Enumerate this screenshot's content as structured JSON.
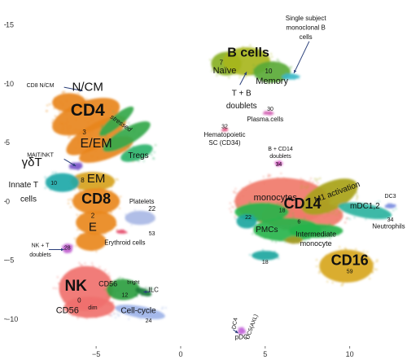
{
  "chart_data": {
    "type": "scatter",
    "title": "",
    "xlabel": "",
    "ylabel": "",
    "xlim": [
      -10.3,
      13
    ],
    "ylim": [
      -12.3,
      16.7
    ],
    "x_ticks": [
      -5,
      0,
      5,
      10
    ],
    "y_ticks": [
      -10,
      -5,
      0,
      5,
      10,
      15
    ],
    "grid": false,
    "legend": "none",
    "clusters": [
      {
        "id": "cd4",
        "color": "#E8861E",
        "ellipses": [
          [
            -5.6,
            7.2,
            2.1,
            1.3,
            -20
          ],
          [
            -5.0,
            5.6,
            2.0,
            1.0,
            -30
          ],
          [
            -4.4,
            4.4,
            1.7,
            0.8,
            -20
          ],
          [
            -6.6,
            8.4,
            1.0,
            0.8,
            0
          ]
        ]
      },
      {
        "id": "cd4-green",
        "color": "#34A84A",
        "ellipses": [
          [
            -3.8,
            6.8,
            1.3,
            0.5,
            -40
          ],
          [
            -3.2,
            5.5,
            1.6,
            0.7,
            -30
          ]
        ]
      },
      {
        "id": "tregs",
        "color": "#2DB36B",
        "ellipses": [
          [
            -2.6,
            4.1,
            1.0,
            0.6,
            -20
          ]
        ]
      },
      {
        "id": "em",
        "color": "#D6A21C",
        "ellipses": [
          [
            -5.2,
            1.7,
            1.3,
            0.8,
            0
          ]
        ]
      },
      {
        "id": "cd8",
        "color": "#E9881E",
        "ellipses": [
          [
            -5.0,
            0.0,
            1.4,
            1.1,
            0
          ],
          [
            -5.0,
            -1.8,
            1.2,
            1.0,
            0
          ],
          [
            -5.3,
            -3.4,
            0.9,
            0.8,
            0
          ]
        ]
      },
      {
        "id": "gdt",
        "color": "#1FA8A8",
        "ellipses": [
          [
            -7.0,
            1.6,
            1.0,
            0.8,
            0
          ]
        ]
      },
      {
        "id": "mait",
        "color": "#7A55C9",
        "ellipses": [
          [
            -6.2,
            3.0,
            0.4,
            0.3,
            0
          ]
        ]
      },
      {
        "id": "nk",
        "color": "#F0716E",
        "ellipses": [
          [
            -5.6,
            -7.4,
            1.6,
            1.9,
            0
          ],
          [
            -5.4,
            -9.0,
            1.5,
            0.9,
            0
          ]
        ]
      },
      {
        "id": "cd56bright",
        "color": "#2A9E3F",
        "ellipses": [
          [
            -3.4,
            -7.5,
            1.0,
            0.9,
            0
          ]
        ]
      },
      {
        "id": "ilc",
        "color": "#1A7A3A",
        "ellipses": [
          [
            -2.2,
            -7.7,
            0.5,
            0.3,
            20
          ]
        ]
      },
      {
        "id": "cellcycle",
        "color": "#9DB3E8",
        "ellipses": [
          [
            -2.4,
            -9.4,
            1.5,
            0.5,
            10
          ]
        ]
      },
      {
        "id": "nkt",
        "color": "#C060D0",
        "ellipses": [
          [
            -6.7,
            -4.0,
            0.3,
            0.4,
            0
          ]
        ]
      },
      {
        "id": "platelets",
        "color": "#A9B8E5",
        "ellipses": [
          [
            -2.4,
            -1.4,
            0.9,
            0.6,
            0
          ]
        ]
      },
      {
        "id": "erythroid",
        "color": "#E54A6A",
        "ellipses": [
          [
            -3.5,
            -2.6,
            0.3,
            0.15,
            0
          ]
        ]
      },
      {
        "id": "bnaive",
        "color": "#88B024",
        "ellipses": [
          [
            2.7,
            11.7,
            0.9,
            1.0,
            0
          ]
        ]
      },
      {
        "id": "bcells",
        "color": "#A8B61E",
        "ellipses": [
          [
            3.9,
            11.9,
            1.4,
            1.2,
            0
          ]
        ]
      },
      {
        "id": "bmemory",
        "color": "#5AAA38",
        "ellipses": [
          [
            5.4,
            11.0,
            1.1,
            0.9,
            0
          ]
        ]
      },
      {
        "id": "bsingle",
        "color": "#3BB8C8",
        "ellipses": [
          [
            6.5,
            10.6,
            0.5,
            0.25,
            0
          ]
        ]
      },
      {
        "id": "plasma",
        "color": "#D05AB0",
        "ellipses": [
          [
            5.2,
            7.5,
            0.3,
            0.15,
            0
          ]
        ]
      },
      {
        "id": "hsc",
        "color": "#E04A7A",
        "ellipses": [
          [
            2.6,
            6.1,
            0.15,
            0.15,
            0
          ]
        ]
      },
      {
        "id": "bcd14",
        "color": "#D54AC0",
        "ellipses": [
          [
            5.8,
            3.2,
            0.2,
            0.2,
            0
          ]
        ]
      },
      {
        "id": "cd14",
        "color": "#F07A6A",
        "ellipses": [
          [
            6.0,
            0.0,
            2.8,
            2.0,
            0
          ],
          [
            7.2,
            -1.2,
            2.4,
            1.3,
            0
          ]
        ]
      },
      {
        "id": "m1",
        "color": "#A8A21A",
        "ellipses": [
          [
            8.8,
            0.4,
            1.8,
            1.2,
            -25
          ]
        ]
      },
      {
        "id": "green-cd14",
        "color": "#27B44C",
        "ellipses": [
          [
            6.3,
            -2.4,
            2.0,
            1.0,
            0
          ],
          [
            4.8,
            -0.9,
            1.6,
            0.8,
            0
          ],
          [
            8.0,
            -2.5,
            1.6,
            0.6,
            0
          ]
        ]
      },
      {
        "id": "dc",
        "color": "#2EB39F",
        "ellipses": [
          [
            10.9,
            -0.8,
            1.6,
            0.6,
            10
          ]
        ]
      },
      {
        "id": "cd14teal",
        "color": "#1EA6A0",
        "ellipses": [
          [
            3.9,
            -1.7,
            0.6,
            0.6,
            0
          ],
          [
            5.0,
            -4.6,
            0.8,
            0.4,
            0
          ]
        ]
      },
      {
        "id": "cd16",
        "color": "#D7A61E",
        "ellipses": [
          [
            9.8,
            -5.5,
            1.6,
            1.4,
            0
          ]
        ]
      },
      {
        "id": "cd16olive",
        "color": "#A59A22",
        "ellipses": [
          [
            6.7,
            -3.3,
            0.5,
            0.3,
            0
          ]
        ]
      },
      {
        "id": "neutro",
        "color": "#7A8CE0",
        "ellipses": [
          [
            12.4,
            -0.4,
            0.3,
            0.2,
            0
          ]
        ]
      },
      {
        "id": "pdc",
        "color": "#C060D8",
        "ellipses": [
          [
            3.6,
            -11.0,
            0.2,
            0.3,
            0
          ]
        ]
      }
    ],
    "annotations": [
      {
        "text": "N/CM",
        "x": -5.5,
        "y": 9.4,
        "size": 15
      },
      {
        "text": "CD4",
        "x": -5.5,
        "y": 7.3,
        "size": 21,
        "bold": true
      },
      {
        "text": "3",
        "x": -5.7,
        "y": 5.7,
        "size": 8
      },
      {
        "text": "E/EM",
        "x": -5.0,
        "y": 4.6,
        "size": 16
      },
      {
        "text": "stressed",
        "x": -3.6,
        "y": 6.5,
        "size": 8,
        "italic": true,
        "rotate": 35
      },
      {
        "text": "Tregs",
        "x": -2.5,
        "y": 3.7,
        "size": 10
      },
      {
        "text": "8",
        "x": -5.8,
        "y": 1.6,
        "size": 8
      },
      {
        "text": "EM",
        "x": -5.0,
        "y": 1.6,
        "size": 15
      },
      {
        "text": "CD8",
        "x": -5.0,
        "y": -0.2,
        "size": 18,
        "bold": true
      },
      {
        "text": "2",
        "x": -5.2,
        "y": -1.4,
        "size": 8
      },
      {
        "text": "E",
        "x": -5.2,
        "y": -2.5,
        "size": 15
      },
      {
        "text": "γδT",
        "x": -8.8,
        "y": 3.0,
        "size": 15
      },
      {
        "text": "Innate T",
        "x": -9.3,
        "y": 1.2,
        "size": 10
      },
      {
        "text": "cells",
        "x": -9.0,
        "y": 0.0,
        "size": 10
      },
      {
        "text": "10",
        "x": -7.5,
        "y": 1.4,
        "size": 7
      },
      {
        "text": "MAIT/NKT",
        "x": -8.3,
        "y": 3.8,
        "size": 7
      },
      {
        "text": "CD8 N/CM",
        "x": -8.3,
        "y": 9.7,
        "size": 7
      },
      {
        "text": "NK + T",
        "x": -8.3,
        "y": -3.9,
        "size": 7
      },
      {
        "text": "doublets",
        "x": -8.3,
        "y": -4.7,
        "size": 7
      },
      {
        "text": "28",
        "x": -6.7,
        "y": -4.1,
        "size": 7
      },
      {
        "text": "NK",
        "x": -6.2,
        "y": -7.6,
        "size": 19,
        "bold": true
      },
      {
        "text": "0",
        "x": -6.0,
        "y": -8.6,
        "size": 8
      },
      {
        "text": "CD56",
        "x": -6.7,
        "y": -9.5,
        "size": 11
      },
      {
        "text": "dim",
        "x": -5.2,
        "y": -9.2,
        "size": 7
      },
      {
        "text": "CD56",
        "x": -4.3,
        "y": -7.2,
        "size": 9
      },
      {
        "text": "bright",
        "x": -2.8,
        "y": -7.0,
        "size": 6
      },
      {
        "text": "12",
        "x": -3.3,
        "y": -8.1,
        "size": 7
      },
      {
        "text": "ILC",
        "x": -1.6,
        "y": -7.7,
        "size": 8
      },
      {
        "text": "Cell-cycle",
        "x": -2.5,
        "y": -9.5,
        "size": 10
      },
      {
        "text": "24",
        "x": -1.9,
        "y": -10.3,
        "size": 7
      },
      {
        "text": "Platelets",
        "x": -2.3,
        "y": -0.2,
        "size": 8
      },
      {
        "text": "22",
        "x": -1.7,
        "y": -0.8,
        "size": 8
      },
      {
        "text": "Erythroid cells",
        "x": -3.3,
        "y": -3.7,
        "size": 8
      },
      {
        "text": "53",
        "x": -1.7,
        "y": -2.9,
        "size": 7
      },
      {
        "text": "Single subject",
        "x": 7.4,
        "y": 15.4,
        "size": 8
      },
      {
        "text": "monoclonal B",
        "x": 7.4,
        "y": 14.6,
        "size": 8
      },
      {
        "text": "cells",
        "x": 7.4,
        "y": 13.8,
        "size": 8
      },
      {
        "text": "B cells",
        "x": 4.0,
        "y": 12.3,
        "size": 16,
        "bold": true
      },
      {
        "text": "7",
        "x": 2.4,
        "y": 11.6,
        "size": 8
      },
      {
        "text": "Naïve",
        "x": 2.6,
        "y": 10.9,
        "size": 11
      },
      {
        "text": "10",
        "x": 5.2,
        "y": 10.9,
        "size": 8
      },
      {
        "text": "Memory",
        "x": 5.4,
        "y": 10.0,
        "size": 11
      },
      {
        "text": "T + B",
        "x": 3.6,
        "y": 9.0,
        "size": 10
      },
      {
        "text": "doublets",
        "x": 3.6,
        "y": 7.9,
        "size": 10
      },
      {
        "text": "Plasma.cells",
        "x": 5.0,
        "y": 6.8,
        "size": 8
      },
      {
        "text": "30",
        "x": 5.3,
        "y": 7.7,
        "size": 7
      },
      {
        "text": "32",
        "x": 2.6,
        "y": 6.2,
        "size": 7
      },
      {
        "text": "Hematopoietic",
        "x": 2.6,
        "y": 5.5,
        "size": 8
      },
      {
        "text": "SC (CD34)",
        "x": 2.6,
        "y": 4.8,
        "size": 8
      },
      {
        "text": "B + CD14",
        "x": 5.9,
        "y": 4.3,
        "size": 7
      },
      {
        "text": "doublets",
        "x": 5.9,
        "y": 3.7,
        "size": 7
      },
      {
        "text": "34",
        "x": 5.8,
        "y": 3.0,
        "size": 7
      },
      {
        "text": "monocytes",
        "x": 5.6,
        "y": 0.1,
        "size": 11
      },
      {
        "text": "CD14",
        "x": 7.2,
        "y": -0.6,
        "size": 18,
        "bold": true
      },
      {
        "text": "18",
        "x": 6.0,
        "y": -0.9,
        "size": 7
      },
      {
        "text": "M1 activation",
        "x": 9.3,
        "y": 0.6,
        "size": 10,
        "rotate": -20
      },
      {
        "text": "mDC1,2",
        "x": 10.9,
        "y": -0.6,
        "size": 10
      },
      {
        "text": "DC3",
        "x": 12.4,
        "y": 0.3,
        "size": 7
      },
      {
        "text": "34",
        "x": 12.4,
        "y": -1.7,
        "size": 7
      },
      {
        "text": "Neutrophils",
        "x": 12.3,
        "y": -2.3,
        "size": 8
      },
      {
        "text": "PMCs",
        "x": 5.1,
        "y": -2.6,
        "size": 10
      },
      {
        "text": "22",
        "x": 4.0,
        "y": -1.5,
        "size": 7
      },
      {
        "text": "6",
        "x": 7.0,
        "y": -1.9,
        "size": 7
      },
      {
        "text": "Intermediate",
        "x": 8.0,
        "y": -3.0,
        "size": 9
      },
      {
        "text": "monocyte",
        "x": 8.0,
        "y": -3.8,
        "size": 9
      },
      {
        "text": "18",
        "x": 5.0,
        "y": -5.3,
        "size": 7
      },
      {
        "text": "CD16",
        "x": 10.0,
        "y": -5.4,
        "size": 18,
        "bold": true
      },
      {
        "text": "59",
        "x": 10.0,
        "y": -6.1,
        "size": 7
      },
      {
        "text": "DC4",
        "x": 3.3,
        "y": -10.4,
        "size": 7,
        "rotate": -80
      },
      {
        "text": "DC5(AXL)",
        "x": 4.3,
        "y": -10.7,
        "size": 7,
        "rotate": -70
      },
      {
        "text": "pDC",
        "x": 3.6,
        "y": -11.7,
        "size": 8
      }
    ],
    "arrows": [
      [
        -6.9,
        3.6,
        -6.2,
        3.0
      ],
      [
        -6.9,
        9.7,
        -5.8,
        9.4
      ],
      [
        -7.8,
        -4.1,
        -6.9,
        -4.1
      ],
      [
        -1.8,
        -7.7,
        -2.2,
        -7.7
      ],
      [
        3.5,
        9.9,
        3.9,
        11.0
      ],
      [
        7.6,
        13.6,
        6.7,
        10.9
      ],
      [
        3.1,
        -10.9,
        3.4,
        -11.2
      ]
    ]
  }
}
